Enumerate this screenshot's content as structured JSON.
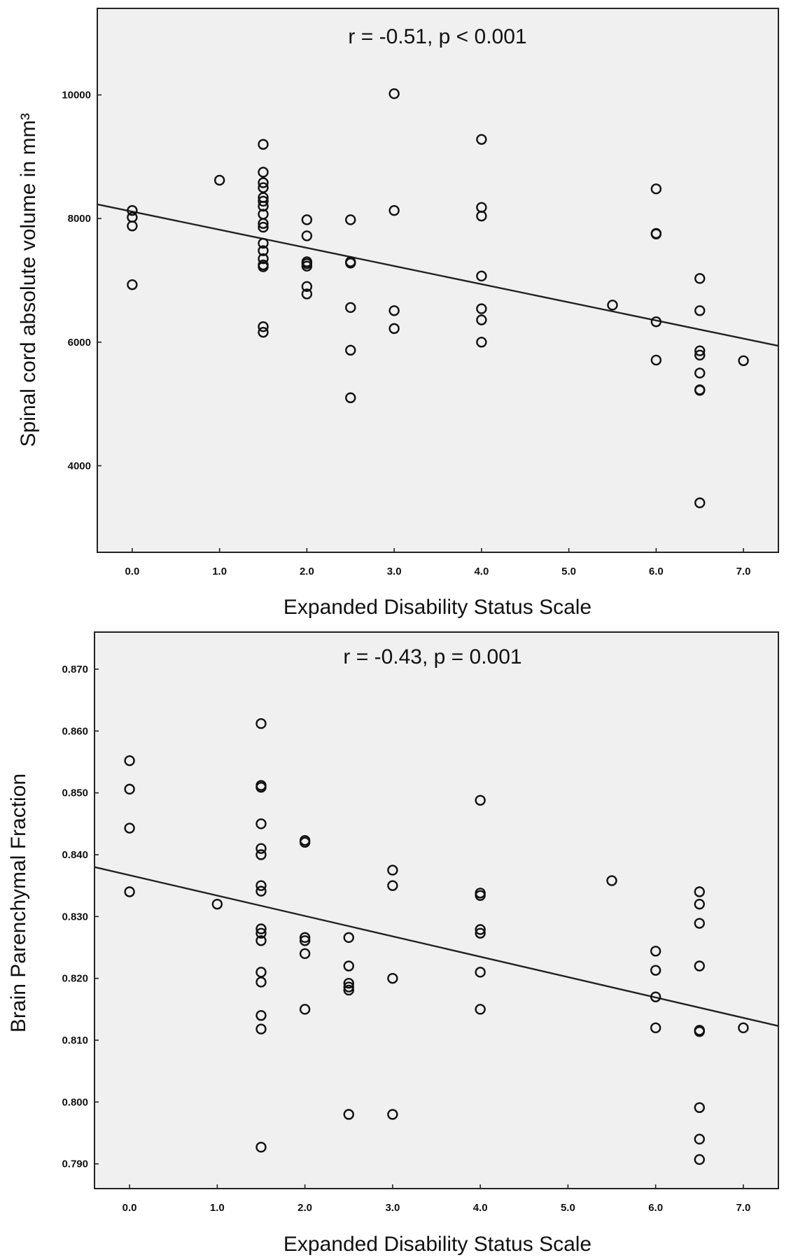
{
  "chart_data": [
    {
      "type": "scatter",
      "title": "",
      "annotation": "r = -0.51, p < 0.001",
      "xlabel": "Expanded Disability Status Scale",
      "ylabel": "Spinal cord absolute volume in mm³",
      "xlim": [
        -0.4,
        7.4
      ],
      "ylim": [
        2600,
        11400
      ],
      "xticks": [
        0,
        1,
        2,
        3,
        4,
        5,
        6,
        7
      ],
      "xtick_labels": [
        "0.0",
        "1.0",
        "2.0",
        "3.0",
        "4.0",
        "5.0",
        "6.0",
        "7.0"
      ],
      "yticks": [
        4000,
        6000,
        8000,
        10000
      ],
      "ytick_labels": [
        "4000",
        "6000",
        "8000",
        "10000"
      ],
      "fit_line": {
        "x": [
          -0.4,
          7.4
        ],
        "y": [
          8230,
          5940
        ]
      },
      "points": [
        [
          0,
          8130
        ],
        [
          0,
          8020
        ],
        [
          0,
          7880
        ],
        [
          0,
          6930
        ],
        [
          1,
          8620
        ],
        [
          1.5,
          9200
        ],
        [
          1.5,
          8750
        ],
        [
          1.5,
          8580
        ],
        [
          1.5,
          8500
        ],
        [
          1.5,
          8340
        ],
        [
          1.5,
          8280
        ],
        [
          1.5,
          8200
        ],
        [
          1.5,
          8070
        ],
        [
          1.5,
          7920
        ],
        [
          1.5,
          7860
        ],
        [
          1.5,
          7600
        ],
        [
          1.5,
          7480
        ],
        [
          1.5,
          7350
        ],
        [
          1.5,
          7250
        ],
        [
          1.5,
          7220
        ],
        [
          1.5,
          6250
        ],
        [
          1.5,
          6160
        ],
        [
          2,
          7980
        ],
        [
          2,
          7720
        ],
        [
          2,
          7300
        ],
        [
          2,
          7270
        ],
        [
          2,
          7230
        ],
        [
          2,
          6900
        ],
        [
          2,
          6780
        ],
        [
          2.5,
          7980
        ],
        [
          2.5,
          7300
        ],
        [
          2.5,
          7280
        ],
        [
          2.5,
          6560
        ],
        [
          2.5,
          5870
        ],
        [
          2.5,
          5100
        ],
        [
          3,
          10020
        ],
        [
          3,
          8130
        ],
        [
          3,
          6510
        ],
        [
          3,
          6220
        ],
        [
          4,
          9280
        ],
        [
          4,
          8180
        ],
        [
          4,
          8040
        ],
        [
          4,
          7070
        ],
        [
          4,
          6540
        ],
        [
          4,
          6360
        ],
        [
          4,
          6000
        ],
        [
          5.5,
          6600
        ],
        [
          6,
          8480
        ],
        [
          6,
          7760
        ],
        [
          6,
          7750
        ],
        [
          6,
          6330
        ],
        [
          6,
          5710
        ],
        [
          6.5,
          7030
        ],
        [
          6.5,
          6510
        ],
        [
          6.5,
          5860
        ],
        [
          6.5,
          5790
        ],
        [
          6.5,
          5500
        ],
        [
          6.5,
          5230
        ],
        [
          6.5,
          5220
        ],
        [
          6.5,
          3400
        ],
        [
          7,
          5700
        ]
      ]
    },
    {
      "type": "scatter",
      "title": "",
      "annotation": "r = -0.43, p = 0.001",
      "xlabel": "Expanded Disability Status Scale",
      "ylabel": "Brain Parenchymal Fraction",
      "xlim": [
        -0.4,
        7.4
      ],
      "ylim": [
        0.786,
        0.876
      ],
      "xticks": [
        0,
        1,
        2,
        3,
        4,
        5,
        6,
        7
      ],
      "xtick_labels": [
        "0.0",
        "1.0",
        "2.0",
        "3.0",
        "4.0",
        "5.0",
        "6.0",
        "7.0"
      ],
      "yticks": [
        0.79,
        0.8,
        0.81,
        0.82,
        0.83,
        0.84,
        0.85,
        0.86,
        0.87
      ],
      "ytick_labels": [
        "0.790",
        "0.800",
        "0.810",
        "0.820",
        "0.830",
        "0.840",
        "0.850",
        "0.860",
        "0.870"
      ],
      "fit_line": {
        "x": [
          -0.4,
          7.4
        ],
        "y": [
          0.838,
          0.8123
        ]
      },
      "points": [
        [
          0,
          0.8552
        ],
        [
          0,
          0.8506
        ],
        [
          0,
          0.8443
        ],
        [
          0,
          0.834
        ],
        [
          1,
          0.832
        ],
        [
          1.5,
          0.8612
        ],
        [
          1.5,
          0.8512
        ],
        [
          1.5,
          0.8509
        ],
        [
          1.5,
          0.845
        ],
        [
          1.5,
          0.841
        ],
        [
          1.5,
          0.84
        ],
        [
          1.5,
          0.835
        ],
        [
          1.5,
          0.8341
        ],
        [
          1.5,
          0.828
        ],
        [
          1.5,
          0.8273
        ],
        [
          1.5,
          0.8261
        ],
        [
          1.5,
          0.821
        ],
        [
          1.5,
          0.8194
        ],
        [
          1.5,
          0.814
        ],
        [
          1.5,
          0.8118
        ],
        [
          1.5,
          0.7927
        ],
        [
          2,
          0.8423
        ],
        [
          2,
          0.842
        ],
        [
          2,
          0.8266
        ],
        [
          2,
          0.8261
        ],
        [
          2,
          0.824
        ],
        [
          2,
          0.815
        ],
        [
          2.5,
          0.8266
        ],
        [
          2.5,
          0.822
        ],
        [
          2.5,
          0.8192
        ],
        [
          2.5,
          0.8186
        ],
        [
          2.5,
          0.8181
        ],
        [
          2.5,
          0.798
        ],
        [
          3,
          0.8375
        ],
        [
          3,
          0.835
        ],
        [
          3,
          0.82
        ],
        [
          3,
          0.798
        ],
        [
          4,
          0.8488
        ],
        [
          4,
          0.8338
        ],
        [
          4,
          0.8334
        ],
        [
          4,
          0.8279
        ],
        [
          4,
          0.8273
        ],
        [
          4,
          0.821
        ],
        [
          4,
          0.815
        ],
        [
          5.5,
          0.8358
        ],
        [
          6,
          0.8244
        ],
        [
          6,
          0.8213
        ],
        [
          6,
          0.817
        ],
        [
          6,
          0.812
        ],
        [
          6.5,
          0.834
        ],
        [
          6.5,
          0.832
        ],
        [
          6.5,
          0.8289
        ],
        [
          6.5,
          0.822
        ],
        [
          6.5,
          0.8116
        ],
        [
          6.5,
          0.8114
        ],
        [
          6.5,
          0.7991
        ],
        [
          6.5,
          0.794
        ],
        [
          6.5,
          0.7907
        ],
        [
          7,
          0.812
        ]
      ]
    }
  ]
}
